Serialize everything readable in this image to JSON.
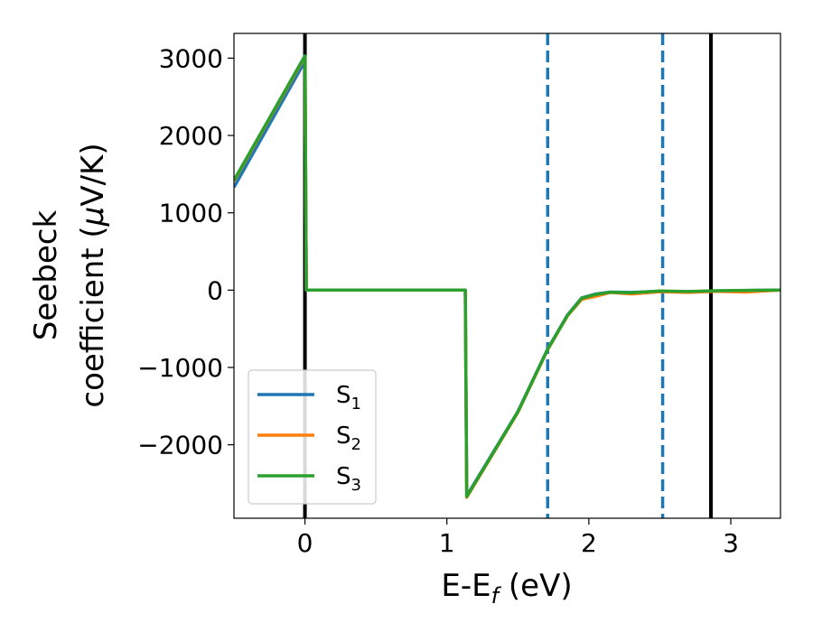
{
  "chart_data": {
    "type": "line",
    "title": "",
    "xlabel": "E-E",
    "xlabel_sub": "f",
    "xlabel_suffix": " (eV)",
    "ylabel_line1": "Seebeck",
    "ylabel_line2_prefix": "coefficient  (",
    "ylabel_mu": "μ",
    "ylabel_line2_suffix": "V/K)",
    "xlim": [
      -0.5,
      3.35
    ],
    "ylim": [
      -2950,
      3320
    ],
    "xticks": [
      0,
      1,
      2,
      3
    ],
    "xtick_labels": [
      "0",
      "1",
      "2",
      "3"
    ],
    "yticks": [
      3000,
      2000,
      1000,
      0,
      -1000,
      -2000
    ],
    "ytick_labels": [
      "3000",
      "2000",
      "1000",
      "0",
      "−1000",
      "−2000"
    ],
    "grid": false,
    "legend_position": "lower-left",
    "vlines": [
      {
        "x": 0.0,
        "style": "solid",
        "color": "#000000"
      },
      {
        "x": 2.86,
        "style": "solid",
        "color": "#000000"
      },
      {
        "x": 1.71,
        "style": "dashed",
        "color": "#1f77b4"
      },
      {
        "x": 2.52,
        "style": "dashed",
        "color": "#1f77b4"
      }
    ],
    "series": [
      {
        "name": "S",
        "sub": "1",
        "color": "#1f77b4",
        "x": [
          -0.5,
          0.0,
          0.01,
          1.13,
          1.14,
          1.5,
          1.71,
          1.85,
          1.95,
          2.05,
          2.15,
          2.3,
          2.5,
          2.7,
          2.9,
          3.1,
          3.35
        ],
        "y": [
          1330,
          2960,
          0,
          0,
          -2660,
          -1570,
          -760,
          -320,
          -100,
          -50,
          -25,
          -30,
          -15,
          -20,
          -10,
          -5,
          0
        ]
      },
      {
        "name": "S",
        "sub": "2",
        "color": "#ff7f0e",
        "x": [
          -0.5,
          0.0,
          0.01,
          1.13,
          1.14,
          1.5,
          1.71,
          1.85,
          1.95,
          2.05,
          2.15,
          2.3,
          2.5,
          2.7,
          2.9,
          3.1,
          3.35
        ],
        "y": [
          1410,
          3020,
          0,
          0,
          -2680,
          -1580,
          -770,
          -330,
          -120,
          -80,
          -30,
          -50,
          -20,
          -30,
          -15,
          -25,
          0
        ]
      },
      {
        "name": "S",
        "sub": "3",
        "color": "#2ca02c",
        "x": [
          -0.5,
          0.0,
          0.01,
          1.13,
          1.14,
          1.5,
          1.71,
          1.85,
          1.95,
          2.05,
          2.15,
          2.3,
          2.5,
          2.7,
          2.9,
          3.1,
          3.35
        ],
        "y": [
          1420,
          3030,
          0,
          0,
          -2670,
          -1575,
          -765,
          -325,
          -105,
          -55,
          -28,
          -35,
          -10,
          -18,
          -8,
          -3,
          0
        ]
      }
    ]
  }
}
